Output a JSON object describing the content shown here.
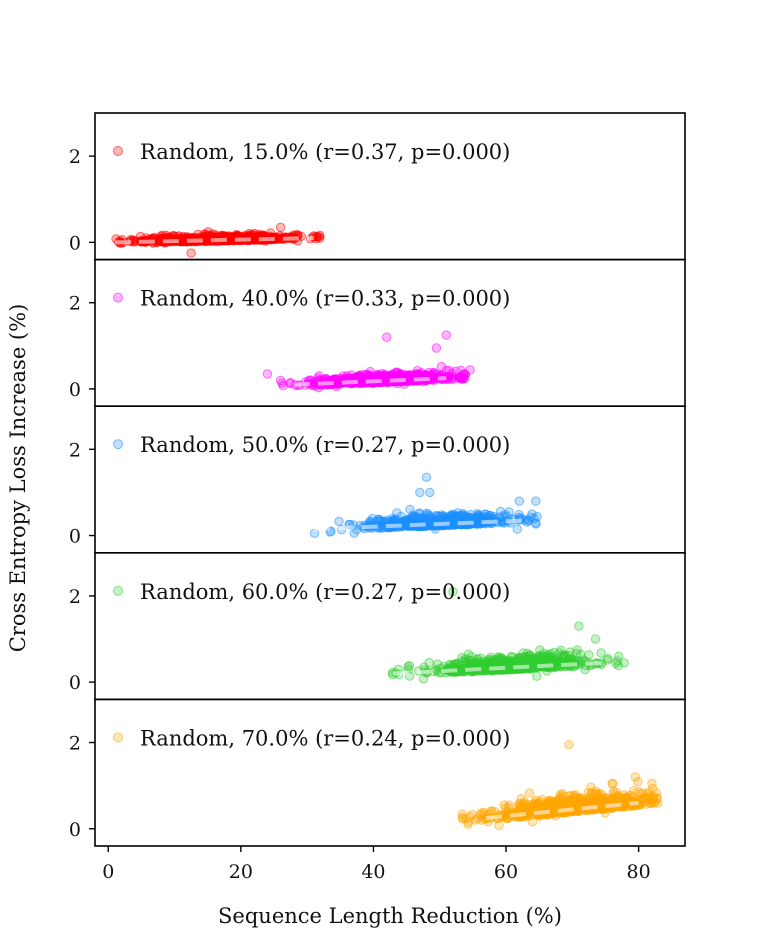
{
  "chart_data": {
    "type": "scatter",
    "xlabel": "Sequence Length Reduction (%)",
    "ylabel": "Cross Entropy Loss Increase (%)",
    "xlim": [
      -2,
      87
    ],
    "ylim": [
      -0.4,
      3.0
    ],
    "xticks": [
      0,
      20,
      40,
      60,
      80
    ],
    "yticks": [
      0,
      2
    ],
    "grid": false,
    "panels": [
      {
        "name": "Random, 15.0%",
        "legend": "Random, 15.0%  (r=0.37, p=0.000)",
        "color": "#ff0000",
        "x_mean": 17,
        "x_spread": 5.5,
        "x_min": 1,
        "x_max": 32,
        "fit_x": [
          1,
          31
        ],
        "fit_y": [
          0.0,
          0.1
        ],
        "base_y": 0.05,
        "noise_y": 0.06,
        "outliers": [
          [
            12.5,
            -0.25
          ],
          [
            31,
            0.15
          ],
          [
            26,
            0.35
          ]
        ]
      },
      {
        "name": "Random, 40.0%",
        "legend": "Random, 40.0%  (r=0.33, p=0.000)",
        "color": "#ff00ff",
        "x_mean": 42,
        "x_spread": 5.0,
        "x_min": 24,
        "x_max": 55,
        "fit_x": [
          28,
          51
        ],
        "fit_y": [
          0.1,
          0.25
        ],
        "base_y": 0.18,
        "noise_y": 0.1,
        "outliers": [
          [
            42,
            1.2
          ],
          [
            51,
            1.25
          ],
          [
            49.5,
            0.95
          ],
          [
            24,
            0.35
          ]
        ]
      },
      {
        "name": "Random, 50.0%",
        "legend": "Random, 50.0%  (r=0.27, p=0.000)",
        "color": "#1e90ff",
        "x_mean": 50,
        "x_spread": 5.0,
        "x_min": 31,
        "x_max": 65,
        "fit_x": [
          31,
          63
        ],
        "fit_y": [
          0.15,
          0.35
        ],
        "base_y": 0.25,
        "noise_y": 0.12,
        "outliers": [
          [
            48,
            1.35
          ],
          [
            47,
            1.0
          ],
          [
            48.5,
            1.0
          ],
          [
            64.5,
            0.8
          ],
          [
            62,
            0.8
          ]
        ]
      },
      {
        "name": "Random, 60.0%",
        "legend": "Random, 60.0%  (r=0.27, p=0.000)",
        "color": "#32cd32",
        "x_mean": 61,
        "x_spread": 5.5,
        "x_min": 42,
        "x_max": 78,
        "fit_x": [
          43,
          75
        ],
        "fit_y": [
          0.2,
          0.45
        ],
        "base_y": 0.32,
        "noise_y": 0.15,
        "outliers": [
          [
            71,
            1.3
          ],
          [
            73.5,
            1.0
          ],
          [
            77,
            0.6
          ],
          [
            52,
            2.1
          ]
        ]
      },
      {
        "name": "Random, 70.0%",
        "legend": "Random, 70.0%  (r=0.24, p=0.000)",
        "color": "#ffa500",
        "x_mean": 70,
        "x_spread": 6.0,
        "x_min": 53,
        "x_max": 83,
        "fit_x": [
          57,
          80
        ],
        "fit_y": [
          0.25,
          0.6
        ],
        "base_y": 0.42,
        "noise_y": 0.18,
        "outliers": [
          [
            69.5,
            1.95
          ],
          [
            79.5,
            1.2
          ],
          [
            82,
            1.05
          ],
          [
            76,
            1.05
          ]
        ]
      }
    ]
  }
}
